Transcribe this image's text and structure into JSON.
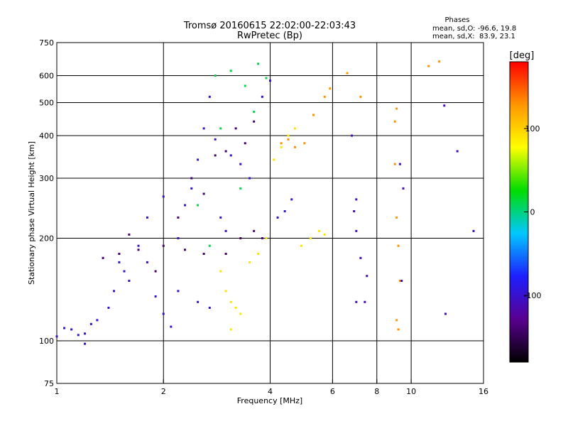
{
  "chart_data": {
    "type": "scatter",
    "title": "Tromsø 20160615 22:02:00-22:03:43",
    "subtitle": "RwPretec (Bp)",
    "xlabel": "Frequency [MHz]",
    "ylabel": "Stationary phase Virtual Height [km]",
    "x_scale": "log",
    "y_scale": "log",
    "xlim": [
      1,
      16
    ],
    "ylim": [
      75,
      750
    ],
    "x_ticks": [
      1,
      2,
      4,
      6,
      8,
      10,
      16
    ],
    "x_tick_labels": [
      "1",
      "2",
      "4",
      "6",
      "8",
      "10",
      "16"
    ],
    "y_ticks": [
      75,
      100,
      200,
      300,
      400,
      500,
      600,
      750
    ],
    "y_tick_labels": [
      "75",
      "100",
      "200",
      "300",
      "400",
      "500",
      "600",
      "750"
    ],
    "x_grid": [
      2,
      4,
      6,
      8,
      10
    ],
    "y_grid": [
      100,
      200,
      300,
      400,
      500,
      600
    ],
    "grid": true,
    "legend": {
      "title": "Phases",
      "line1": "mean, sd,O: -96.6, 19.8",
      "line2": "mean, sd,X:  83.9, 23.1",
      "placement": "top-right"
    },
    "colorbar": {
      "label": "[deg]",
      "range": [
        -180,
        180
      ],
      "ticks": [
        100,
        0,
        -100
      ],
      "tick_labels": [
        "100",
        "0",
        "-100"
      ],
      "colors": [
        "#000000",
        "#5a0090",
        "#1e1eff",
        "#00c8ff",
        "#00dc00",
        "#ffff00",
        "#ff9600",
        "#ff0000"
      ]
    },
    "series": [
      {
        "phase": -100,
        "points": [
          [
            1.0,
            103
          ],
          [
            1.05,
            109
          ],
          [
            1.1,
            108
          ],
          [
            1.15,
            104
          ],
          [
            1.2,
            98
          ],
          [
            1.3,
            115
          ],
          [
            1.4,
            125
          ],
          [
            1.45,
            140
          ],
          [
            1.5,
            170
          ],
          [
            1.55,
            160
          ],
          [
            1.6,
            150
          ],
          [
            1.7,
            190
          ],
          [
            1.8,
            170
          ],
          [
            1.9,
            135
          ],
          [
            2.0,
            120
          ],
          [
            2.1,
            110
          ],
          [
            2.2,
            200
          ],
          [
            2.3,
            250
          ],
          [
            2.4,
            280
          ],
          [
            2.5,
            340
          ],
          [
            2.6,
            420
          ],
          [
            2.7,
            520
          ],
          [
            2.8,
            390
          ],
          [
            2.9,
            230
          ],
          [
            3.0,
            210
          ],
          [
            3.1,
            350
          ],
          [
            3.3,
            330
          ],
          [
            3.5,
            300
          ],
          [
            3.8,
            520
          ],
          [
            4.0,
            580
          ],
          [
            4.2,
            230
          ],
          [
            4.4,
            240
          ],
          [
            4.6,
            260
          ],
          [
            2.2,
            140
          ],
          [
            2.5,
            130
          ],
          [
            2.7,
            125
          ],
          [
            1.2,
            105
          ],
          [
            1.25,
            112
          ],
          [
            1.8,
            230
          ],
          [
            2.0,
            265
          ]
        ]
      },
      {
        "phase": -140,
        "points": [
          [
            1.35,
            175
          ],
          [
            1.5,
            180
          ],
          [
            1.7,
            185
          ],
          [
            2.0,
            190
          ],
          [
            2.3,
            185
          ],
          [
            2.6,
            180
          ],
          [
            3.0,
            180
          ],
          [
            3.3,
            200
          ],
          [
            3.6,
            210
          ],
          [
            2.8,
            350
          ],
          [
            3.0,
            360
          ],
          [
            3.2,
            420
          ],
          [
            3.4,
            380
          ],
          [
            3.6,
            440
          ],
          [
            2.4,
            300
          ],
          [
            2.6,
            270
          ],
          [
            2.2,
            230
          ],
          [
            1.6,
            205
          ],
          [
            1.9,
            160
          ],
          [
            3.8,
            200
          ]
        ]
      },
      {
        "phase": 10,
        "points": [
          [
            2.8,
            600
          ],
          [
            3.1,
            620
          ],
          [
            3.4,
            560
          ],
          [
            3.7,
            650
          ],
          [
            2.9,
            420
          ],
          [
            3.3,
            280
          ],
          [
            2.7,
            190
          ],
          [
            2.5,
            250
          ],
          [
            3.6,
            470
          ],
          [
            3.9,
            590
          ]
        ]
      },
      {
        "phase": 90,
        "points": [
          [
            2.9,
            160
          ],
          [
            3.0,
            140
          ],
          [
            3.1,
            130
          ],
          [
            3.2,
            125
          ],
          [
            3.3,
            120
          ],
          [
            3.1,
            108
          ],
          [
            3.5,
            170
          ],
          [
            3.7,
            180
          ],
          [
            4.1,
            340
          ],
          [
            4.3,
            370
          ],
          [
            4.5,
            400
          ],
          [
            4.7,
            420
          ],
          [
            4.9,
            190
          ],
          [
            5.2,
            200
          ],
          [
            5.5,
            210
          ],
          [
            5.7,
            205
          ],
          [
            3.9,
            200
          ]
        ]
      },
      {
        "phase": 130,
        "points": [
          [
            4.3,
            380
          ],
          [
            4.5,
            390
          ],
          [
            4.7,
            370
          ],
          [
            5.0,
            380
          ],
          [
            5.3,
            460
          ],
          [
            5.7,
            520
          ],
          [
            5.9,
            550
          ],
          [
            6.6,
            610
          ],
          [
            7.2,
            520
          ],
          [
            9.1,
            480
          ],
          [
            9.0,
            440
          ],
          [
            9.0,
            330
          ],
          [
            9.1,
            230
          ],
          [
            9.2,
            190
          ],
          [
            9.3,
            150
          ],
          [
            9.1,
            115
          ],
          [
            9.2,
            108
          ],
          [
            11.2,
            640
          ],
          [
            12.0,
            660
          ]
        ]
      },
      {
        "phase": -110,
        "points": [
          [
            6.8,
            400
          ],
          [
            7.0,
            260
          ],
          [
            6.9,
            240
          ],
          [
            7.0,
            210
          ],
          [
            7.2,
            175
          ],
          [
            7.5,
            155
          ],
          [
            7.0,
            130
          ],
          [
            7.4,
            130
          ],
          [
            9.3,
            330
          ],
          [
            9.5,
            280
          ],
          [
            9.4,
            150
          ],
          [
            12.4,
            490
          ],
          [
            12.5,
            120
          ],
          [
            13.5,
            360
          ],
          [
            15.0,
            210
          ]
        ]
      }
    ]
  }
}
